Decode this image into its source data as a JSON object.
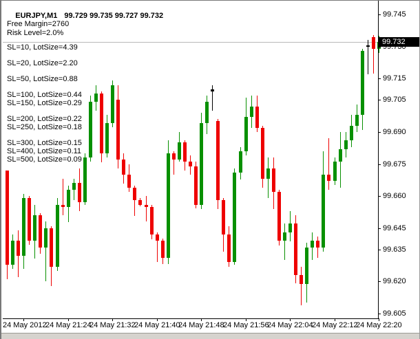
{
  "window": {
    "title": {
      "symbol_period": "EURJPY,M1",
      "ohlc_text": "99.729 99.735 99.727 99.732"
    },
    "comment_lines": [
      "Free Margin=2760",
      "Risk Level=2.0%"
    ],
    "sl_groups": [
      [
        "SL=10, LotSize=4.39"
      ],
      [
        "SL=20, LotSize=2.20"
      ],
      [
        "SL=50, LotSize=0.88"
      ],
      [
        "SL=100, LotSize=0.44",
        "SL=150, LotSize=0.29"
      ],
      [
        "SL=200, LotSize=0.22",
        "SL=250, LotSize=0.18"
      ],
      [
        "SL=300, LotSize=0.15",
        "SL=400, LotSize=0.11",
        "SL=500, LotSize=0.09"
      ]
    ]
  },
  "chart_data": {
    "type": "candlestick",
    "symbol": "EURJPY",
    "timeframe": "M1",
    "title": "EURJPY,M1 99.729 99.735 99.727 99.732",
    "last_candle_ohlc": {
      "open": 99.729,
      "high": 99.735,
      "low": 99.727,
      "close": 99.732
    },
    "current_price_label": "99.732",
    "grid": "off",
    "colors": {
      "up": "#089000",
      "down": "#ee0000",
      "doji": "#000000",
      "price_line": "#b8b8b8",
      "badge_bg": "#000000",
      "badge_text": "#ffffff",
      "background": "#ffffff",
      "axis_text": "#000000"
    },
    "y_axis": {
      "labels": [
        "99.745",
        "99.730",
        "99.715",
        "99.705",
        "99.690",
        "99.675",
        "99.660",
        "99.645",
        "99.635",
        "99.620",
        "99.605"
      ],
      "range": [
        99.605,
        99.745
      ]
    },
    "x_axis": {
      "labels": [
        {
          "text": "24 May 2012",
          "index": 3
        },
        {
          "text": "24 May 21:24",
          "index": 11
        },
        {
          "text": "24 May 21:32",
          "index": 19
        },
        {
          "text": "24 May 21:40",
          "index": 27
        },
        {
          "text": "24 May 21:48",
          "index": 35
        },
        {
          "text": "24 May 21:56",
          "index": 43
        },
        {
          "text": "24 May 22:04",
          "index": 51
        },
        {
          "text": "24 May 22:12",
          "index": 59
        },
        {
          "text": "24 May 22:20",
          "index": 67
        }
      ]
    },
    "doji_indices": [
      37,
      65
    ],
    "candles": [
      [
        99.672,
        99.672,
        99.621,
        99.628
      ],
      [
        99.628,
        99.642,
        99.626,
        99.639
      ],
      [
        99.639,
        99.644,
        99.622,
        99.632
      ],
      [
        99.632,
        99.661,
        99.626,
        99.659
      ],
      [
        99.659,
        99.66,
        99.637,
        99.639
      ],
      [
        99.639,
        99.656,
        99.631,
        99.651
      ],
      [
        99.651,
        99.652,
        99.633,
        99.636
      ],
      [
        99.636,
        99.648,
        99.62,
        99.645
      ],
      [
        99.645,
        99.646,
        99.618,
        99.627
      ],
      [
        99.627,
        99.659,
        99.625,
        99.656
      ],
      [
        99.656,
        99.668,
        99.651,
        99.655
      ],
      [
        99.655,
        99.665,
        99.648,
        99.663
      ],
      [
        99.663,
        99.668,
        99.658,
        99.666
      ],
      [
        99.666,
        99.673,
        99.653,
        99.657
      ],
      [
        99.657,
        99.68,
        99.656,
        99.678
      ],
      [
        99.678,
        99.707,
        99.676,
        99.704
      ],
      [
        99.704,
        99.712,
        99.7,
        99.708
      ],
      [
        99.708,
        99.709,
        99.676,
        99.68
      ],
      [
        99.68,
        99.698,
        99.678,
        99.694
      ],
      [
        99.694,
        99.714,
        99.692,
        99.712
      ],
      [
        99.705,
        99.712,
        99.673,
        99.677
      ],
      [
        99.677,
        99.68,
        99.666,
        99.67
      ],
      [
        99.67,
        99.675,
        99.662,
        99.664
      ],
      [
        99.664,
        99.665,
        99.651,
        99.658
      ],
      [
        99.658,
        99.659,
        99.655,
        99.656
      ],
      [
        99.656,
        99.66,
        99.648,
        99.655
      ],
      [
        99.655,
        99.656,
        99.64,
        99.642
      ],
      [
        99.642,
        99.643,
        99.629,
        99.639
      ],
      [
        99.639,
        99.64,
        99.628,
        99.631
      ],
      [
        99.631,
        99.686,
        99.628,
        99.68
      ],
      [
        99.68,
        99.681,
        99.67,
        99.677
      ],
      [
        99.677,
        99.69,
        99.676,
        99.685
      ],
      [
        99.685,
        99.686,
        99.672,
        99.676
      ],
      [
        99.676,
        99.679,
        99.67,
        99.674
      ],
      [
        99.674,
        99.676,
        99.654,
        99.656
      ],
      [
        99.656,
        99.699,
        99.654,
        99.694
      ],
      [
        99.694,
        99.707,
        99.689,
        99.704
      ],
      [
        99.709,
        99.712,
        99.7,
        99.71
      ],
      [
        99.695,
        99.696,
        99.654,
        99.658
      ],
      [
        99.658,
        99.659,
        99.634,
        99.642
      ],
      [
        99.642,
        99.646,
        99.627,
        99.629
      ],
      [
        99.629,
        99.673,
        99.628,
        99.671
      ],
      [
        99.671,
        99.683,
        99.668,
        99.681
      ],
      [
        99.681,
        99.706,
        99.679,
        99.697
      ],
      [
        99.697,
        99.707,
        99.692,
        99.702
      ],
      [
        99.702,
        99.707,
        99.69,
        99.692
      ],
      [
        99.692,
        99.693,
        99.664,
        99.668
      ],
      [
        99.668,
        99.678,
        99.659,
        99.673
      ],
      [
        99.673,
        99.678,
        99.654,
        99.662
      ],
      [
        99.662,
        99.663,
        99.637,
        99.639
      ],
      [
        99.639,
        99.647,
        99.63,
        99.643
      ],
      [
        99.643,
        99.653,
        99.639,
        99.647
      ],
      [
        99.647,
        99.651,
        99.619,
        99.623
      ],
      [
        99.623,
        99.627,
        99.609,
        99.619
      ],
      [
        99.619,
        99.638,
        99.61,
        99.636
      ],
      [
        99.636,
        99.643,
        99.63,
        99.639
      ],
      [
        99.639,
        99.641,
        99.631,
        99.636
      ],
      [
        99.636,
        99.681,
        99.634,
        99.67
      ],
      [
        99.67,
        99.687,
        99.663,
        99.667
      ],
      [
        99.667,
        99.678,
        99.665,
        99.676
      ],
      [
        99.676,
        99.69,
        99.664,
        99.682
      ],
      [
        99.682,
        99.69,
        99.678,
        99.686
      ],
      [
        99.686,
        99.698,
        99.683,
        99.693
      ],
      [
        99.693,
        99.703,
        99.69,
        99.698
      ],
      [
        99.698,
        99.729,
        99.691,
        99.728
      ],
      [
        99.73,
        99.733,
        99.717,
        99.7305
      ],
      [
        99.7345,
        99.7355,
        99.7175,
        99.729
      ],
      [
        99.729,
        99.735,
        99.727,
        99.732
      ]
    ]
  }
}
